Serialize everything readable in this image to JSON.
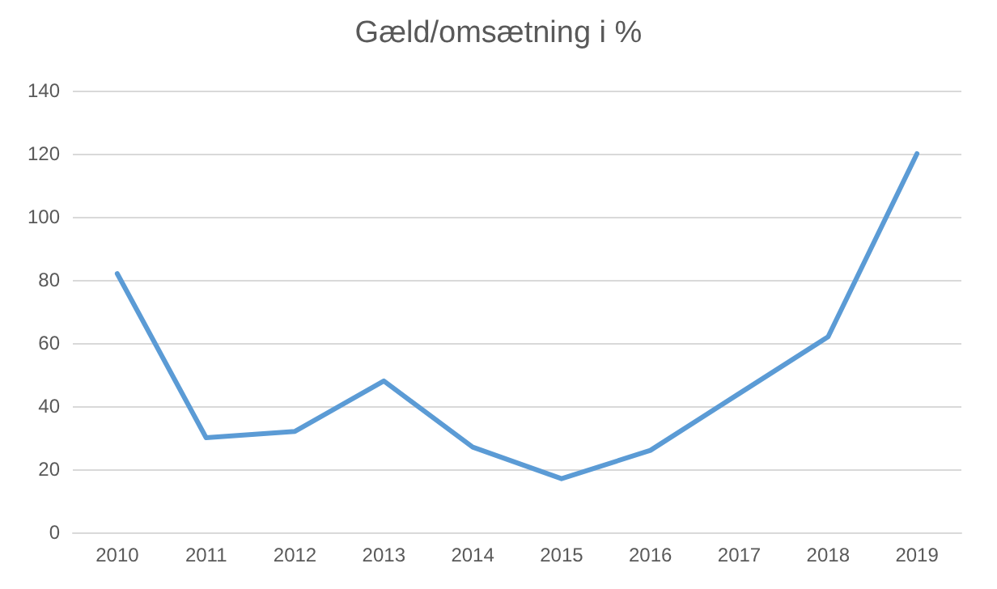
{
  "chart_data": {
    "type": "line",
    "title": "Gæld/omsætning i %",
    "categories": [
      "2010",
      "2011",
      "2012",
      "2013",
      "2014",
      "2015",
      "2016",
      "2017",
      "2018",
      "2019"
    ],
    "series": [
      {
        "color": "#5b9bd5",
        "values": [
          82,
          30,
          32,
          48,
          27,
          17,
          26,
          44,
          62,
          120
        ]
      }
    ],
    "ylim": [
      0,
      140
    ],
    "yticks": [
      0,
      20,
      40,
      60,
      80,
      100,
      120,
      140
    ],
    "grid": "y",
    "marker": "none",
    "line_style": "solid"
  }
}
